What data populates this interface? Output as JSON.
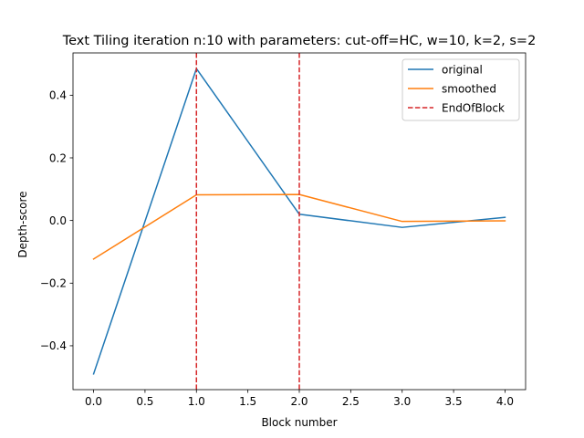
{
  "chart_data": {
    "type": "line",
    "title": "Text Tiling iteration n:10 with parameters: cut-off=HC, w=10, k=2, s=2",
    "xlabel": "Block number",
    "ylabel": "Depth-score",
    "xlim": [
      -0.2,
      4.2
    ],
    "ylim": [
      -0.54,
      0.535
    ],
    "xticks": [
      0.0,
      0.5,
      1.0,
      1.5,
      2.0,
      2.5,
      3.0,
      3.5,
      4.0
    ],
    "xtick_labels": [
      "0.0",
      "0.5",
      "1.0",
      "1.5",
      "2.0",
      "2.5",
      "3.0",
      "3.5",
      "4.0"
    ],
    "yticks": [
      -0.4,
      -0.2,
      0.0,
      0.2,
      0.4
    ],
    "ytick_labels": [
      "−0.4",
      "−0.2",
      "0.0",
      "0.2",
      "0.4"
    ],
    "grid": false,
    "legend_position": "top-right",
    "x": [
      0,
      1,
      2,
      3,
      4
    ],
    "series": [
      {
        "name": "original",
        "color": "#1f77b4",
        "style": "solid",
        "values": [
          -0.49,
          0.485,
          0.02,
          -0.022,
          0.01
        ]
      },
      {
        "name": "smoothed",
        "color": "#ff7f0e",
        "style": "solid",
        "values": [
          -0.123,
          0.082,
          0.083,
          -0.003,
          -0.001
        ]
      }
    ],
    "vlines": {
      "name": "EndOfBlock",
      "color": "#d62728",
      "style": "dashed",
      "x": [
        1,
        2
      ]
    }
  }
}
